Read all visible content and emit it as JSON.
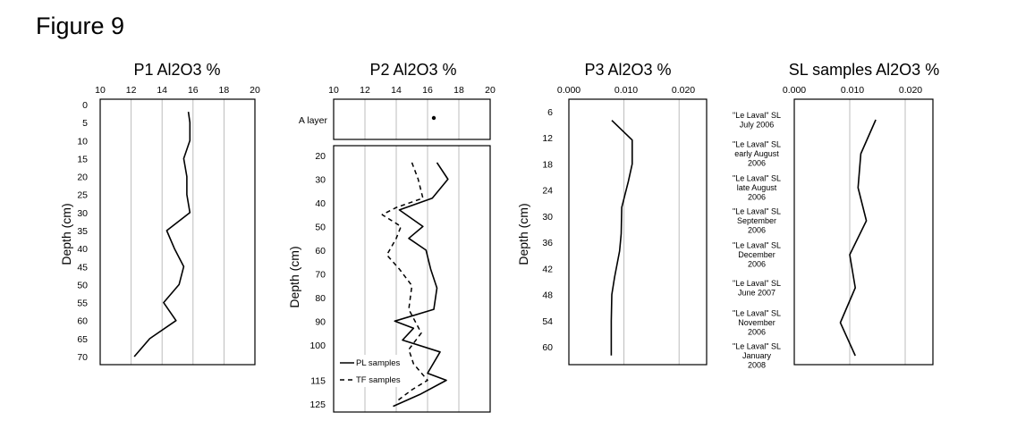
{
  "figure_title": "Figure 9",
  "chart_data": [
    {
      "type": "line",
      "title": "P1  Al2O3 %",
      "xlabel": "",
      "ylabel": "Depth (cm)",
      "xlim": [
        10,
        20
      ],
      "x_ticks": [
        "10",
        "12",
        "14",
        "16",
        "18",
        "20"
      ],
      "ylim": [
        0,
        70
      ],
      "y_ticks": [
        "0",
        "5",
        "10",
        "15",
        "20",
        "25",
        "30",
        "35",
        "40",
        "45",
        "50",
        "55",
        "60",
        "65",
        "70"
      ],
      "y_reversed": true,
      "grid": "vertical",
      "series": [
        {
          "style": "solid",
          "points": [
            [
              15.7,
              2
            ],
            [
              15.8,
              5
            ],
            [
              15.8,
              10
            ],
            [
              15.4,
              15
            ],
            [
              15.6,
              20
            ],
            [
              15.6,
              25
            ],
            [
              15.8,
              30
            ],
            [
              14.3,
              35
            ],
            [
              14.8,
              40
            ],
            [
              15.4,
              45
            ],
            [
              15.1,
              50
            ],
            [
              14.1,
              55
            ],
            [
              14.9,
              60
            ],
            [
              13.2,
              65
            ],
            [
              12.2,
              70
            ]
          ]
        }
      ]
    },
    {
      "type": "line",
      "title": "P2 Al2O3 %",
      "xlabel": "",
      "ylabel": "Depth (cm)",
      "xlim": [
        10,
        20
      ],
      "x_ticks": [
        "10",
        "12",
        "14",
        "16",
        "18",
        "20"
      ],
      "y_reversed": true,
      "grid": "vertical",
      "top_panel": {
        "label": "A layer",
        "point": 16.4
      },
      "ylim": [
        15,
        130
      ],
      "y_ticks": [
        "20",
        "30",
        "40",
        "50",
        "60",
        "70",
        "80",
        "90",
        "100",
        "115",
        "125"
      ],
      "legend": [
        "PL samples",
        "TF samples"
      ],
      "series": [
        {
          "name": "PL samples",
          "style": "solid",
          "points": [
            [
              16.6,
              23
            ],
            [
              17.3,
              30
            ],
            [
              16.3,
              38
            ],
            [
              14.2,
              43
            ],
            [
              15.7,
              50
            ],
            [
              14.8,
              55
            ],
            [
              15.9,
              60
            ],
            [
              16.2,
              68
            ],
            [
              16.6,
              76
            ],
            [
              16.4,
              85
            ],
            [
              13.9,
              90
            ],
            [
              15.1,
              93
            ],
            [
              14.4,
              98
            ],
            [
              16.8,
              103
            ],
            [
              16.0,
              112
            ],
            [
              17.2,
              115
            ],
            [
              15.5,
              121
            ],
            [
              13.8,
              126
            ]
          ]
        },
        {
          "name": "TF samples",
          "style": "dashed",
          "points": [
            [
              15.0,
              23
            ],
            [
              15.4,
              30
            ],
            [
              15.7,
              38
            ],
            [
              14.0,
              42
            ],
            [
              13.1,
              45
            ],
            [
              14.3,
              50
            ],
            [
              14.0,
              55
            ],
            [
              13.4,
              62
            ],
            [
              14.2,
              68
            ],
            [
              15.0,
              75
            ],
            [
              14.8,
              85
            ],
            [
              15.6,
              95
            ],
            [
              14.8,
              102
            ],
            [
              15.1,
              108
            ],
            [
              16.0,
              115
            ],
            [
              15.0,
              119
            ],
            [
              14.0,
              124
            ]
          ]
        }
      ]
    },
    {
      "type": "line",
      "title": "P3 Al2O3 %",
      "xlabel": "",
      "ylabel": "Depth (cm)",
      "xlim": [
        0,
        0.025
      ],
      "x_ticks": [
        "0.000",
        "0.010",
        "0.020"
      ],
      "ylim": [
        6,
        63
      ],
      "y_ticks": [
        "6",
        "12",
        "18",
        "24",
        "30",
        "36",
        "42",
        "48",
        "54",
        "60"
      ],
      "y_reversed": true,
      "grid": "vertical",
      "series": [
        {
          "style": "solid",
          "points": [
            [
              0.0078,
              8
            ],
            [
              0.0115,
              12.5
            ],
            [
              0.0115,
              18
            ],
            [
              0.0108,
              22
            ],
            [
              0.0096,
              28
            ],
            [
              0.0095,
              34
            ],
            [
              0.0092,
              38
            ],
            [
              0.0083,
              44
            ],
            [
              0.0078,
              48
            ],
            [
              0.0077,
              54
            ],
            [
              0.0077,
              62
            ]
          ]
        }
      ]
    },
    {
      "type": "line",
      "title": "SL samples Al2O3 %",
      "xlabel": "",
      "ylabel": "",
      "xlim": [
        0,
        0.025
      ],
      "x_ticks": [
        "0.000",
        "0.010",
        "0.020"
      ],
      "y_reversed": true,
      "grid": "vertical",
      "categories": [
        [
          "\"Le Laval\" SL",
          "July 2006"
        ],
        [
          "\"Le Laval\" SL",
          "early August",
          "2006"
        ],
        [
          "\"Le Laval\" SL",
          "late August",
          "2006"
        ],
        [
          "\"Le Laval\" SL",
          "September",
          "2006"
        ],
        [
          "\"Le Laval\" SL",
          "December",
          "2006"
        ],
        [
          "\"Le Laval\" SL",
          "June 2007"
        ],
        [
          "\"Le Laval\" SL",
          "November",
          "2006"
        ],
        [
          "\"Le Laval\" SL",
          "January",
          "2008"
        ]
      ],
      "series": [
        {
          "style": "solid",
          "values": [
            0.0147,
            0.012,
            0.0115,
            0.013,
            0.01,
            0.011,
            0.0083,
            0.011
          ]
        }
      ]
    }
  ]
}
